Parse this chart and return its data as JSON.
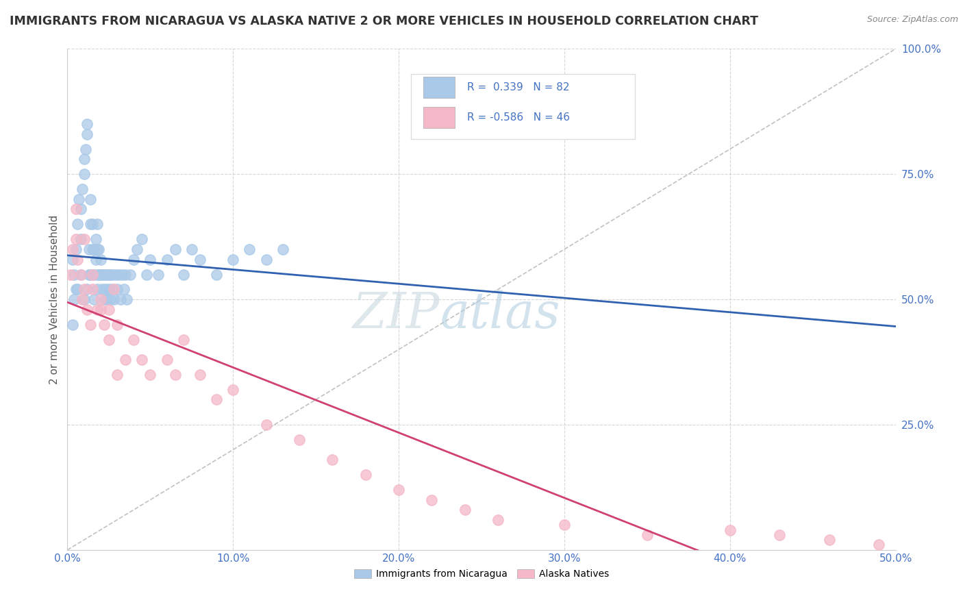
{
  "title": "IMMIGRANTS FROM NICARAGUA VS ALASKA NATIVE 2 OR MORE VEHICLES IN HOUSEHOLD CORRELATION CHART",
  "source": "Source: ZipAtlas.com",
  "ylabel": "2 or more Vehicles in Household",
  "xlim": [
    0.0,
    0.5
  ],
  "ylim": [
    0.0,
    1.0
  ],
  "xtick_labels": [
    "0.0%",
    "10.0%",
    "20.0%",
    "30.0%",
    "40.0%",
    "50.0%"
  ],
  "xtick_vals": [
    0.0,
    0.1,
    0.2,
    0.3,
    0.4,
    0.5
  ],
  "ytick_labels": [
    "25.0%",
    "50.0%",
    "75.0%",
    "100.0%"
  ],
  "ytick_vals": [
    0.25,
    0.5,
    0.75,
    1.0
  ],
  "blue_R": 0.339,
  "blue_N": 82,
  "pink_R": -0.586,
  "pink_N": 46,
  "blue_color": "#aac9e8",
  "pink_color": "#f4b8c8",
  "blue_line_color": "#3060b0",
  "pink_line_color": "#d04070",
  "diag_line_color": "#bbbbbb",
  "watermark_zip": "ZIP",
  "watermark_atlas": "atlas",
  "legend_blue_label": "Immigrants from Nicaragua",
  "legend_pink_label": "Alaska Natives",
  "background_color": "#ffffff",
  "grid_color": "#cccccc",
  "title_color": "#333333",
  "tick_color": "#4472c4",
  "ylabel_color": "#555555",
  "source_color": "#888888",
  "title_fontsize": 12.5,
  "axis_label_fontsize": 11,
  "tick_fontsize": 11,
  "legend_fontsize": 10,
  "blue_scatter_x": [
    0.003,
    0.004,
    0.005,
    0.005,
    0.006,
    0.007,
    0.008,
    0.008,
    0.009,
    0.01,
    0.01,
    0.011,
    0.012,
    0.012,
    0.013,
    0.013,
    0.014,
    0.014,
    0.015,
    0.015,
    0.015,
    0.016,
    0.016,
    0.017,
    0.017,
    0.018,
    0.018,
    0.018,
    0.019,
    0.019,
    0.02,
    0.02,
    0.021,
    0.021,
    0.022,
    0.022,
    0.023,
    0.023,
    0.024,
    0.024,
    0.025,
    0.025,
    0.026,
    0.026,
    0.027,
    0.027,
    0.028,
    0.029,
    0.03,
    0.031,
    0.032,
    0.033,
    0.034,
    0.035,
    0.036,
    0.038,
    0.04,
    0.042,
    0.045,
    0.048,
    0.05,
    0.055,
    0.06,
    0.065,
    0.07,
    0.075,
    0.08,
    0.09,
    0.1,
    0.11,
    0.12,
    0.13,
    0.003,
    0.004,
    0.006,
    0.008,
    0.01,
    0.012,
    0.014,
    0.016,
    0.018,
    0.02
  ],
  "blue_scatter_y": [
    0.58,
    0.55,
    0.52,
    0.6,
    0.65,
    0.7,
    0.62,
    0.68,
    0.72,
    0.75,
    0.78,
    0.8,
    0.83,
    0.85,
    0.55,
    0.6,
    0.65,
    0.7,
    0.55,
    0.6,
    0.65,
    0.55,
    0.6,
    0.58,
    0.62,
    0.55,
    0.6,
    0.65,
    0.55,
    0.6,
    0.55,
    0.58,
    0.52,
    0.55,
    0.5,
    0.55,
    0.52,
    0.55,
    0.5,
    0.55,
    0.52,
    0.55,
    0.5,
    0.55,
    0.52,
    0.55,
    0.5,
    0.55,
    0.52,
    0.55,
    0.5,
    0.55,
    0.52,
    0.55,
    0.5,
    0.55,
    0.58,
    0.6,
    0.62,
    0.55,
    0.58,
    0.55,
    0.58,
    0.6,
    0.55,
    0.6,
    0.58,
    0.55,
    0.58,
    0.6,
    0.58,
    0.6,
    0.45,
    0.5,
    0.52,
    0.55,
    0.5,
    0.52,
    0.55,
    0.5,
    0.52,
    0.55
  ],
  "pink_scatter_x": [
    0.002,
    0.003,
    0.005,
    0.006,
    0.008,
    0.009,
    0.01,
    0.012,
    0.014,
    0.015,
    0.018,
    0.02,
    0.022,
    0.025,
    0.028,
    0.03,
    0.035,
    0.04,
    0.045,
    0.05,
    0.06,
    0.065,
    0.07,
    0.08,
    0.09,
    0.1,
    0.12,
    0.14,
    0.16,
    0.18,
    0.2,
    0.22,
    0.24,
    0.26,
    0.3,
    0.35,
    0.4,
    0.43,
    0.46,
    0.49,
    0.005,
    0.01,
    0.015,
    0.02,
    0.025,
    0.03
  ],
  "pink_scatter_y": [
    0.55,
    0.6,
    0.62,
    0.58,
    0.55,
    0.5,
    0.52,
    0.48,
    0.45,
    0.52,
    0.48,
    0.5,
    0.45,
    0.48,
    0.52,
    0.45,
    0.38,
    0.42,
    0.38,
    0.35,
    0.38,
    0.35,
    0.42,
    0.35,
    0.3,
    0.32,
    0.25,
    0.22,
    0.18,
    0.15,
    0.12,
    0.1,
    0.08,
    0.06,
    0.05,
    0.03,
    0.04,
    0.03,
    0.02,
    0.01,
    0.68,
    0.62,
    0.55,
    0.48,
    0.42,
    0.35
  ]
}
